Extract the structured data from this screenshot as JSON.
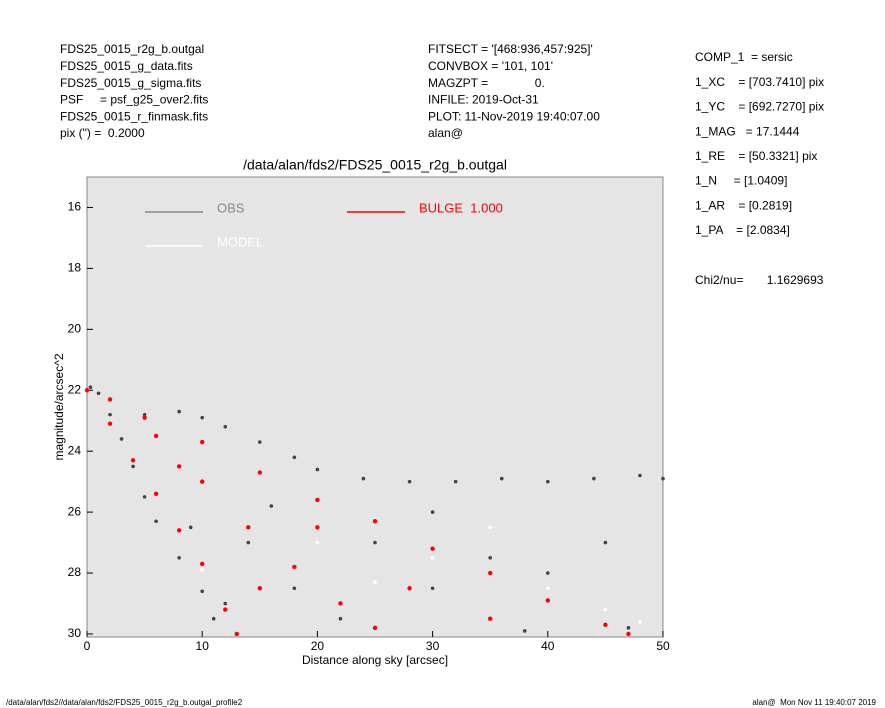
{
  "header": {
    "left": [
      "FDS25_0015_r2g_b.outgal",
      "FDS25_0015_g_data.fits",
      "FDS25_0015_g_sigma.fits",
      "PSF     = psf_g25_over2.fits",
      "FDS25_0015_r_finmask.fits",
      "pix (\") =  0.2000"
    ],
    "middle": [
      "FITSECT = '[468:936,457:925]'",
      "CONVBOX = '101, 101'",
      "MAGZPT =              0.",
      "INFILE: 2019-Oct-31",
      "PLOT: 11-Nov-2019 19:40:07.00",
      "alan@"
    ],
    "params": [
      "COMP_1  = sersic",
      "1_XC    = [703.7410] pix",
      "1_YC    = [692.7270] pix",
      "1_MAG   = 17.1444",
      "1_RE    = [50.3321] pix",
      "1_N     = [1.0409]",
      "1_AR    = [0.2819]",
      "1_PA    = [2.0834]"
    ],
    "chi2": "Chi2/nu=       1.1629693"
  },
  "chart_data": {
    "type": "scatter",
    "title": "/data/alan/fds2/FDS25_0015_r2g_b.outgal",
    "x_label": "Distance along sky [arcsec]",
    "y_label": "magnitude/arcsec^2",
    "xlim": [
      0,
      50
    ],
    "xticks": [
      0,
      10,
      20,
      30,
      40,
      50
    ],
    "ylim": [
      30.1,
      15.0
    ],
    "yticks": [
      16,
      18,
      20,
      22,
      24,
      26,
      28,
      30
    ],
    "series": [
      {
        "name": "OBS",
        "color": "#444444",
        "x": [
          0.3,
          1,
          2,
          3,
          4,
          5,
          6,
          8,
          10,
          11,
          5,
          8,
          10,
          12,
          15,
          18,
          20,
          24,
          28,
          32,
          36,
          40,
          44,
          48,
          50,
          14,
          20,
          25,
          30,
          35,
          40,
          45,
          12,
          18,
          9,
          22,
          47,
          38,
          30,
          16
        ],
        "values": [
          21.9,
          22.1,
          22.8,
          23.6,
          24.5,
          25.5,
          26.3,
          27.5,
          28.6,
          29.5,
          22.8,
          22.7,
          22.9,
          23.2,
          23.7,
          24.2,
          24.6,
          24.9,
          25.0,
          25.0,
          24.9,
          25.0,
          24.9,
          24.8,
          24.9,
          27.0,
          26.5,
          27.0,
          26.0,
          27.5,
          28.0,
          27.0,
          29.0,
          28.5,
          26.5,
          29.5,
          29.8,
          29.9,
          28.5,
          25.8
        ]
      },
      {
        "name": "MODEL",
        "color": "#ffffff",
        "x": [
          20,
          30,
          40,
          45,
          48,
          35,
          25,
          10
        ],
        "values": [
          27.0,
          27.5,
          28.5,
          29.2,
          29.6,
          26.5,
          28.3,
          27.9
        ]
      },
      {
        "name": "BULGE  1.000",
        "color": "#ff0000",
        "x": [
          0,
          2,
          5,
          10,
          15,
          20,
          25,
          30,
          35,
          40,
          45,
          47,
          2,
          4,
          6,
          8,
          10,
          12,
          13,
          6,
          10,
          14,
          18,
          22,
          20,
          28,
          35,
          15,
          8,
          25
        ],
        "values": [
          22.0,
          22.3,
          22.9,
          23.7,
          24.7,
          25.6,
          26.3,
          27.2,
          28.0,
          28.9,
          29.7,
          30.0,
          23.1,
          24.3,
          25.4,
          26.6,
          27.7,
          29.2,
          30.0,
          23.5,
          25.0,
          26.5,
          27.8,
          29.0,
          26.5,
          28.5,
          29.5,
          28.5,
          24.5,
          29.8
        ]
      }
    ]
  },
  "footer": {
    "left": "/data/alan/fds2//data/alan/fds2/FDS25_0015_r2g_b.outgal_profile2",
    "right": "alan@  Mon Nov 11 19:40:07 2019"
  }
}
